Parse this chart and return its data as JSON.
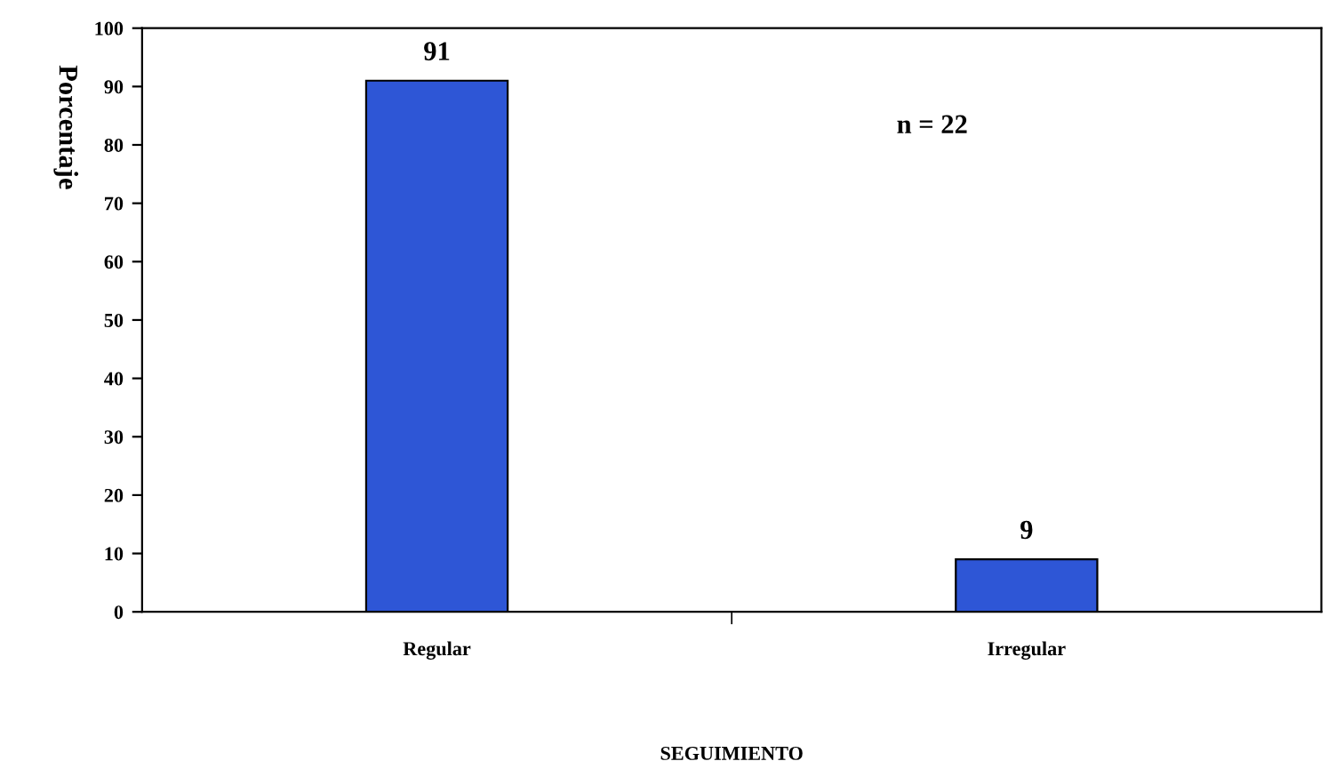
{
  "chart_data": {
    "type": "bar",
    "xlabel": "SEGUIMIENTO",
    "ylabel": "Porcentaje",
    "categories": [
      "Regular",
      "Irregular"
    ],
    "values": [
      91,
      9
    ],
    "color": "#2e56d6",
    "ylim": [
      0,
      100
    ],
    "yticks": [
      0,
      10,
      20,
      30,
      40,
      50,
      60,
      70,
      80,
      90,
      100
    ],
    "data_labels": true,
    "grid": false,
    "annotations": [
      "n = 22"
    ]
  }
}
